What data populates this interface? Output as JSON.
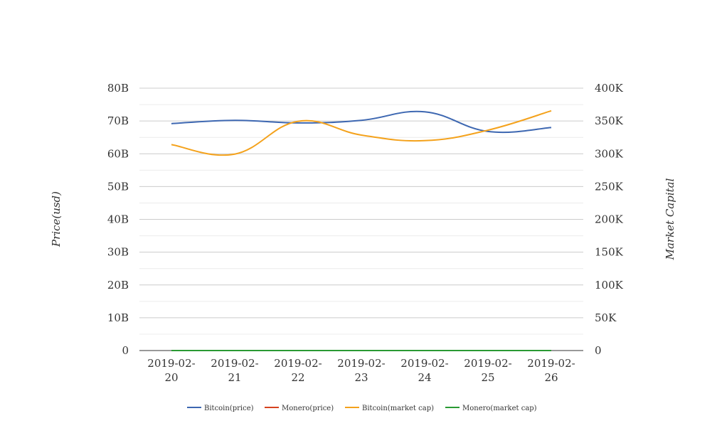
{
  "chart_data": {
    "type": "line",
    "categories": [
      "2019-02-20",
      "2019-02-21",
      "2019-02-22",
      "2019-02-23",
      "2019-02-24",
      "2019-02-25",
      "2019-02-26"
    ],
    "category_lines": [
      [
        "2019-02-",
        "20"
      ],
      [
        "2019-02-",
        "21"
      ],
      [
        "2019-02-",
        "22"
      ],
      [
        "2019-02-",
        "23"
      ],
      [
        "2019-02-",
        "24"
      ],
      [
        "2019-02-",
        "25"
      ],
      [
        "2019-02-",
        "26"
      ]
    ],
    "ylabel": "Price(usd)",
    "y2label": "Market Capital",
    "ylim": [
      0,
      80000000000
    ],
    "y2lim": [
      0,
      400000
    ],
    "yticks": [
      {
        "value": 0,
        "label": "0"
      },
      {
        "value": 10000000000,
        "label": "10B"
      },
      {
        "value": 20000000000,
        "label": "20B"
      },
      {
        "value": 30000000000,
        "label": "30B"
      },
      {
        "value": 40000000000,
        "label": "40B"
      },
      {
        "value": 50000000000,
        "label": "50B"
      },
      {
        "value": 60000000000,
        "label": "60B"
      },
      {
        "value": 70000000000,
        "label": "70B"
      },
      {
        "value": 80000000000,
        "label": "80B"
      }
    ],
    "y2ticks": [
      {
        "value": 0,
        "label": "0"
      },
      {
        "value": 50000,
        "label": "50K"
      },
      {
        "value": 100000,
        "label": "100K"
      },
      {
        "value": 150000,
        "label": "150K"
      },
      {
        "value": 200000,
        "label": "200K"
      },
      {
        "value": 250000,
        "label": "250K"
      },
      {
        "value": 300000,
        "label": "300K"
      },
      {
        "value": 350000,
        "label": "350K"
      },
      {
        "value": 400000,
        "label": "400K"
      }
    ],
    "grid": true,
    "legend_position": "bottom",
    "series": [
      {
        "name": "Bitcoin(price)",
        "color": "#3d67b1",
        "axis": "right",
        "values": [
          346000,
          351000,
          347000,
          351000,
          364000,
          334000,
          340000
        ]
      },
      {
        "name": "Monero(price)",
        "color": "#d6431f",
        "axis": "left",
        "values": [
          0,
          0,
          0,
          0,
          0,
          0,
          0
        ]
      },
      {
        "name": "Bitcoin(market cap)",
        "color": "#f4a21c",
        "axis": "left",
        "values": [
          62800000000,
          59900000000,
          69900000000,
          65700000000,
          64000000000,
          67200000000,
          73100000000
        ]
      },
      {
        "name": "Monero(market cap)",
        "color": "#2a9a34",
        "axis": "left",
        "values": [
          0,
          0,
          0,
          0,
          0,
          0,
          0
        ]
      }
    ]
  }
}
